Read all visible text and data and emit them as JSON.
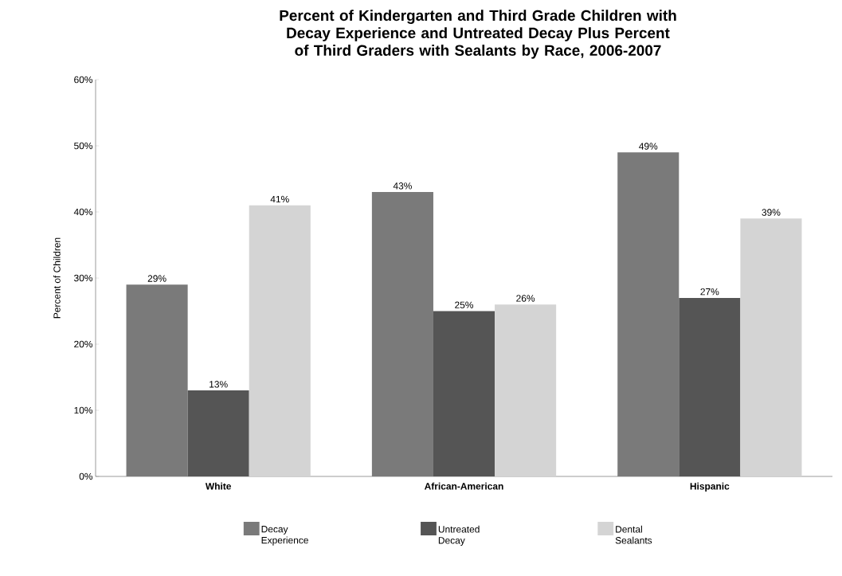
{
  "chart_data": {
    "type": "bar",
    "title": "Percent of Kindergarten and Third Grade Children with Decay Experience and Untreated Decay Plus Percent of Third Graders with Sealants by Race, 2006-2007",
    "ylabel": "Percent of Children",
    "categories": [
      "White",
      "African-American",
      "Hispanic"
    ],
    "series": [
      {
        "name": "Decay Experience",
        "color": "#7a7a7a",
        "values": [
          29,
          43,
          49
        ],
        "value_labels": [
          "29%",
          "43%",
          "49%"
        ]
      },
      {
        "name": "Untreated Decay",
        "color": "#555555",
        "values": [
          13,
          25,
          27
        ],
        "value_labels": [
          "13%",
          "25%",
          "27%"
        ]
      },
      {
        "name": "Dental Sealants",
        "color": "#d4d4d4",
        "values": [
          41,
          26,
          39
        ],
        "value_labels": [
          "41%",
          "26%",
          "39%"
        ]
      }
    ],
    "ylim": [
      0,
      60
    ],
    "yticks": [
      {
        "value": 0,
        "label": "0%"
      },
      {
        "value": 10,
        "label": "10%"
      },
      {
        "value": 20,
        "label": "20%"
      },
      {
        "value": 30,
        "label": "30%"
      },
      {
        "value": 40,
        "label": "40%"
      },
      {
        "value": 50,
        "label": "50%"
      },
      {
        "value": 60,
        "label": "60%"
      }
    ],
    "legend": "bottom"
  }
}
